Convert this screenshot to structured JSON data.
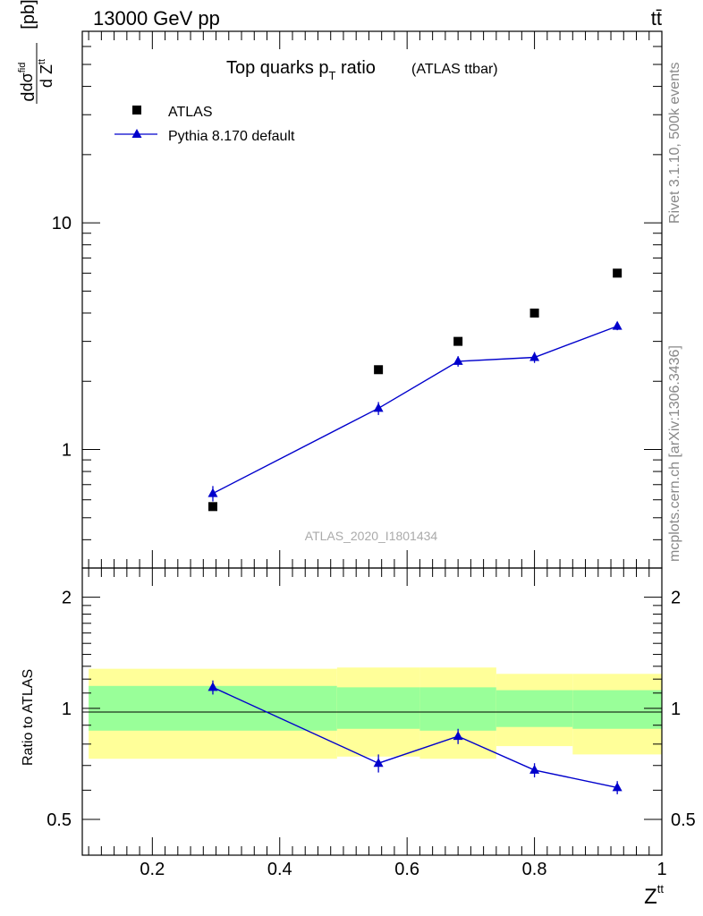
{
  "header": {
    "energy_label": "13000 GeV pp",
    "process_label": "tt̄"
  },
  "side_text": {
    "rivet": "Rivet 3.1.10,  500k events",
    "mcplots": "mcplots.cern.ch [arXiv:1306.3436]"
  },
  "colors": {
    "data": "#000000",
    "mc": "#0000cc",
    "band_inner": "#99ff99",
    "band_outer": "#ffff99"
  },
  "chart_data": [
    {
      "type": "scatter",
      "title_main": "Top quarks p",
      "title_sub": "T",
      "title_tail": " ratio",
      "title_paren": "(ATLAS ttbar)",
      "analysis_label": "ATLAS_2020_I1801434",
      "ylabel_num": "dσ",
      "ylabel_num_sup": "fid",
      "ylabel_den": "d Z",
      "ylabel_den_sup": "tt",
      "ylabel_unit": "[pb]",
      "log_y": true,
      "xlim": [
        0.09,
        1.0
      ],
      "ylim": [
        0.3,
        70
      ],
      "y_ticks": [
        1,
        10
      ],
      "y_tick_labels": [
        "1",
        "10"
      ],
      "legend_placement": "top-left",
      "series": [
        {
          "name": "ATLAS",
          "marker": "square",
          "x": [
            0.295,
            0.555,
            0.68,
            0.8,
            0.93
          ],
          "y": [
            0.56,
            2.25,
            3.0,
            4.0,
            6.0
          ]
        },
        {
          "name": "Pythia 8.170 default",
          "marker": "triangle",
          "x": [
            0.295,
            0.555,
            0.68,
            0.8,
            0.93
          ],
          "y": [
            0.64,
            1.52,
            2.45,
            2.55,
            3.5
          ],
          "err": [
            0.05,
            0.1,
            0.13,
            0.14,
            0.14
          ]
        }
      ]
    },
    {
      "type": "line",
      "ylabel": "Ratio to ATLAS",
      "xlabel": "Z",
      "xlabel_sup": "tt",
      "log_y": true,
      "xlim": [
        0.09,
        1.0
      ],
      "ylim": [
        0.4,
        2.4
      ],
      "x_ticks": [
        0.2,
        0.4,
        0.6,
        0.8,
        1.0
      ],
      "x_tick_labels": [
        "0.2",
        "0.4",
        "0.6",
        "0.8",
        "1"
      ],
      "y_ticks": [
        0.5,
        1,
        2
      ],
      "y_tick_labels": [
        "0.5",
        "1",
        "2"
      ],
      "bands": [
        {
          "x0": 0.1,
          "x1": 0.49,
          "inner": [
            0.87,
            1.15
          ],
          "outer": [
            0.73,
            1.28
          ]
        },
        {
          "x0": 0.49,
          "x1": 0.62,
          "inner": [
            0.88,
            1.14
          ],
          "outer": [
            0.74,
            1.29
          ]
        },
        {
          "x0": 0.62,
          "x1": 0.74,
          "inner": [
            0.87,
            1.14
          ],
          "outer": [
            0.73,
            1.29
          ]
        },
        {
          "x0": 0.74,
          "x1": 0.86,
          "inner": [
            0.89,
            1.12
          ],
          "outer": [
            0.79,
            1.24
          ]
        },
        {
          "x0": 0.86,
          "x1": 1.0,
          "inner": [
            0.88,
            1.12
          ],
          "outer": [
            0.75,
            1.24
          ]
        }
      ],
      "series": [
        {
          "name": "Pythia 8.170 default",
          "x": [
            0.295,
            0.555,
            0.68,
            0.8,
            0.93
          ],
          "y": [
            1.14,
            0.71,
            0.84,
            0.68,
            0.61
          ],
          "err": [
            0.05,
            0.04,
            0.04,
            0.03,
            0.025
          ]
        }
      ]
    }
  ]
}
